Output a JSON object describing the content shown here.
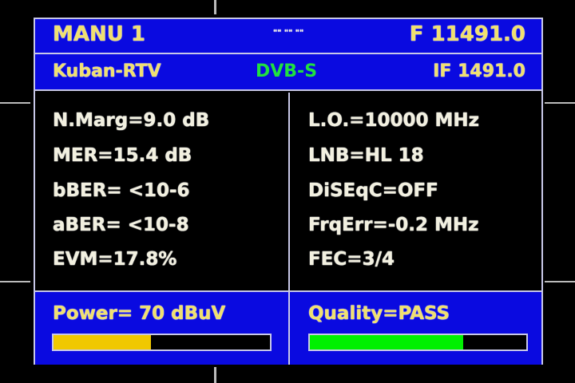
{
  "header": {
    "mode": "MANU 1",
    "indicator": "\"\" \"\" \"\"",
    "frequency": "F 11491.0"
  },
  "subheader": {
    "channel": "Kuban-RTV",
    "standard": "DVB-S",
    "if_freq": "IF 1491.0"
  },
  "left": [
    "N.Marg=9.0 dB",
    "MER=15.4 dB",
    "bBER= <10-6",
    "aBER= <10-8",
    "EVM=17.8%"
  ],
  "right": [
    "L.O.=10000 MHz",
    "LNB=HL 18",
    "DiSEqC=OFF",
    "FrqErr=-0.2 MHz",
    "FEC=3/4"
  ],
  "power": {
    "label": "Power= 70 dBuV",
    "level_percent": 45,
    "color": "#f0c800"
  },
  "quality": {
    "label": "Quality=PASS",
    "level_percent": 71,
    "color": "#00f000"
  },
  "colors": {
    "panel": "#0a0ae0",
    "text": "#f0e070",
    "standard": "#20e040"
  }
}
